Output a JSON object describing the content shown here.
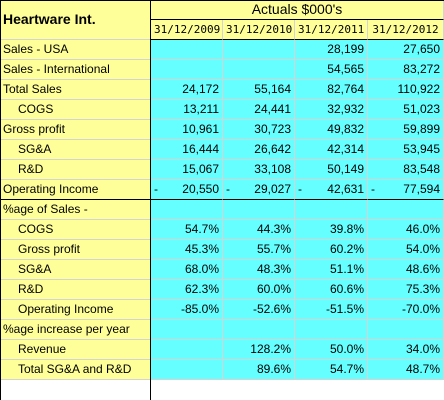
{
  "header": {
    "company": "Heartware Int.",
    "section": "Actuals $000's",
    "dates": [
      "31/12/2009",
      "31/12/2010",
      "31/12/2011",
      "31/12/2012"
    ]
  },
  "rows": [
    {
      "label": "Sales - USA",
      "indent": false,
      "values": [
        "",
        "",
        "28,199",
        "27,650"
      ]
    },
    {
      "label": "Sales - International",
      "indent": false,
      "values": [
        "",
        "",
        "54,565",
        "83,272"
      ]
    },
    {
      "label": "Total Sales",
      "indent": false,
      "values": [
        "24,172",
        "55,164",
        "82,764",
        "110,922"
      ]
    },
    {
      "label": "COGS",
      "indent": true,
      "values": [
        "13,211",
        "24,441",
        "32,932",
        "51,023"
      ]
    },
    {
      "label": "Gross profit",
      "indent": false,
      "values": [
        "10,961",
        "30,723",
        "49,832",
        "59,899"
      ]
    },
    {
      "label": "SG&A",
      "indent": true,
      "values": [
        "16,444",
        "26,642",
        "42,314",
        "53,945"
      ]
    },
    {
      "label": "R&D",
      "indent": true,
      "values": [
        "15,067",
        "33,108",
        "50,149",
        "83,548"
      ]
    },
    {
      "label": "Operating Income",
      "indent": false,
      "neg": true,
      "values": [
        "20,550",
        "29,027",
        "42,631",
        "77,594"
      ]
    },
    {
      "label": "%age of Sales -",
      "indent": false,
      "values": [
        "",
        "",
        "",
        ""
      ]
    },
    {
      "label": "COGS",
      "indent": true,
      "values": [
        "54.7%",
        "44.3%",
        "39.8%",
        "46.0%"
      ]
    },
    {
      "label": "Gross profit",
      "indent": true,
      "values": [
        "45.3%",
        "55.7%",
        "60.2%",
        "54.0%"
      ]
    },
    {
      "label": "SG&A",
      "indent": true,
      "values": [
        "68.0%",
        "48.3%",
        "51.1%",
        "48.6%"
      ]
    },
    {
      "label": "R&D",
      "indent": true,
      "values": [
        "62.3%",
        "60.0%",
        "60.6%",
        "75.3%"
      ]
    },
    {
      "label": "Operating Income",
      "indent": true,
      "values": [
        "-85.0%",
        "-52.6%",
        "-51.5%",
        "-70.0%"
      ]
    },
    {
      "label": "%age increase per year",
      "indent": false,
      "values": [
        "",
        "",
        "",
        ""
      ]
    },
    {
      "label": "Revenue",
      "indent": true,
      "values": [
        "",
        "128.2%",
        "50.0%",
        "34.0%"
      ]
    },
    {
      "label": "Total SG&A and R&D",
      "indent": true,
      "values": [
        "",
        "89.6%",
        "54.7%",
        "48.7%"
      ]
    }
  ],
  "colors": {
    "label_bg": "#ffff99",
    "value_bg": "#66ffff"
  }
}
